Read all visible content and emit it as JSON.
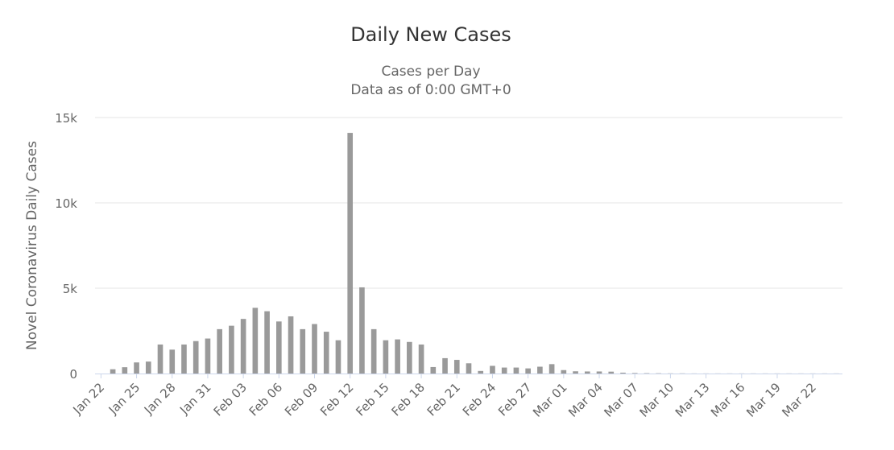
{
  "chart_data": {
    "type": "bar",
    "title": "Daily New Cases",
    "subtitle_line1": "Cases per Day",
    "subtitle_line2": "Data as of 0:00 GMT+0",
    "xlabel": "",
    "ylabel": "Novel Coronavirus Daily Cases",
    "ylim": [
      0,
      15000
    ],
    "y_ticks": [
      0,
      5000,
      10000,
      15000
    ],
    "y_tick_labels": [
      "0",
      "5k",
      "10k",
      "15k"
    ],
    "grid": "horizontal",
    "categories": [
      "Jan 22",
      "Jan 23",
      "Jan 24",
      "Jan 25",
      "Jan 26",
      "Jan 27",
      "Jan 28",
      "Jan 29",
      "Jan 30",
      "Jan 31",
      "Feb 01",
      "Feb 02",
      "Feb 03",
      "Feb 04",
      "Feb 05",
      "Feb 06",
      "Feb 07",
      "Feb 08",
      "Feb 09",
      "Feb 10",
      "Feb 11",
      "Feb 12",
      "Feb 13",
      "Feb 14",
      "Feb 15",
      "Feb 16",
      "Feb 17",
      "Feb 18",
      "Feb 19",
      "Feb 20",
      "Feb 21",
      "Feb 22",
      "Feb 23",
      "Feb 24",
      "Feb 25",
      "Feb 26",
      "Feb 27",
      "Feb 28",
      "Feb 29",
      "Mar 01",
      "Mar 02",
      "Mar 03",
      "Mar 04",
      "Mar 05",
      "Mar 06",
      "Mar 07",
      "Mar 08",
      "Mar 09",
      "Mar 10",
      "Mar 11",
      "Mar 12",
      "Mar 13",
      "Mar 14",
      "Mar 15",
      "Mar 16",
      "Mar 17",
      "Mar 18",
      "Mar 19",
      "Mar 20",
      "Mar 21",
      "Mar 22",
      "Mar 23",
      "Mar 24"
    ],
    "x_tick_labels": [
      "Jan 22",
      "Jan 25",
      "Jan 28",
      "Jan 31",
      "Feb 03",
      "Feb 06",
      "Feb 09",
      "Feb 12",
      "Feb 15",
      "Feb 18",
      "Feb 21",
      "Feb 24",
      "Feb 27",
      "Mar 01",
      "Mar 04",
      "Mar 07",
      "Mar 10",
      "Mar 13",
      "Mar 16",
      "Mar 19",
      "Mar 22"
    ],
    "values": [
      0,
      250,
      370,
      650,
      700,
      1700,
      1400,
      1700,
      1900,
      2050,
      2600,
      2800,
      3200,
      3850,
      3650,
      3050,
      3350,
      2600,
      2900,
      2450,
      1950,
      14100,
      5050,
      2600,
      1950,
      2000,
      1850,
      1700,
      380,
      900,
      800,
      600,
      150,
      450,
      350,
      350,
      300,
      400,
      550,
      200,
      130,
      120,
      120,
      110,
      50,
      30,
      20,
      15,
      10,
      10,
      5,
      5,
      5,
      5,
      5,
      5,
      5,
      5,
      5,
      5,
      5,
      5,
      5
    ],
    "colors": {
      "bar": "#9a9a9a",
      "grid": "#e6e6e6",
      "axis_line": "#ccd6eb",
      "text": "#666666",
      "title": "#333333"
    }
  }
}
